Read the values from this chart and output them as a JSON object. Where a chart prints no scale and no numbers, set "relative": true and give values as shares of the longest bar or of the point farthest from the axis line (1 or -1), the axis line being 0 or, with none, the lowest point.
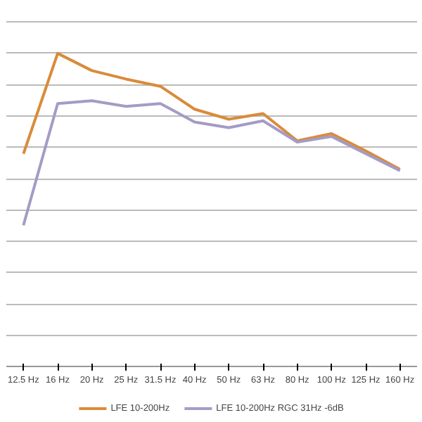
{
  "chart_data": {
    "type": "line",
    "relative": true,
    "grid": "y",
    "legend": "bottom",
    "marker": "none",
    "line_style": "solid",
    "categories": [
      "12.5 Hz",
      "16 Hz",
      "20 Hz",
      "25 Hz",
      "31.5 Hz",
      "40 Hz",
      "50 Hz",
      "63 Hz",
      "80 Hz",
      "100 Hz",
      "125 Hz",
      "160 Hz"
    ],
    "series": [
      {
        "name": "LFE 10-200Hz",
        "color": "#d98b3a",
        "values": [
          0.68,
          1,
          0.945,
          0.918,
          0.895,
          0.822,
          0.79,
          0.808,
          0.721,
          0.744,
          0.689,
          0.63
        ]
      },
      {
        "name": "LFE 10-200Hz RGC 31Hz -6dB",
        "color": "#a59bc6",
        "values": [
          0.452,
          0.84,
          0.849,
          0.831,
          0.84,
          0.781,
          0.763,
          0.785,
          0.717,
          0.735,
          0.68,
          0.626
        ]
      }
    ]
  }
}
